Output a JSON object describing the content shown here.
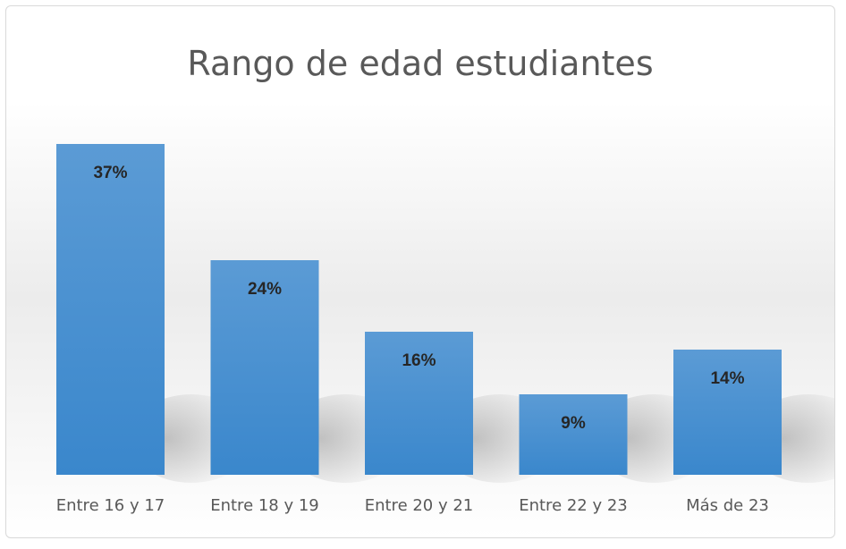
{
  "chart_data": {
    "type": "bar",
    "title": "Rango de edad estudiantes",
    "categories": [
      "Entre 16 y 17",
      "Entre 18 y 19",
      "Entre 20 y 21",
      "Entre 22 y 23",
      "Más de 23"
    ],
    "values": [
      37,
      24,
      16,
      9,
      14
    ],
    "value_labels": [
      "37%",
      "24%",
      "16%",
      "9%",
      "14%"
    ],
    "xlabel": "",
    "ylabel": "",
    "ylim": [
      0,
      37
    ],
    "grid": false,
    "legend": "none",
    "bar_color": "#3a87cc",
    "bar_color_light": "#5b9bd5"
  }
}
